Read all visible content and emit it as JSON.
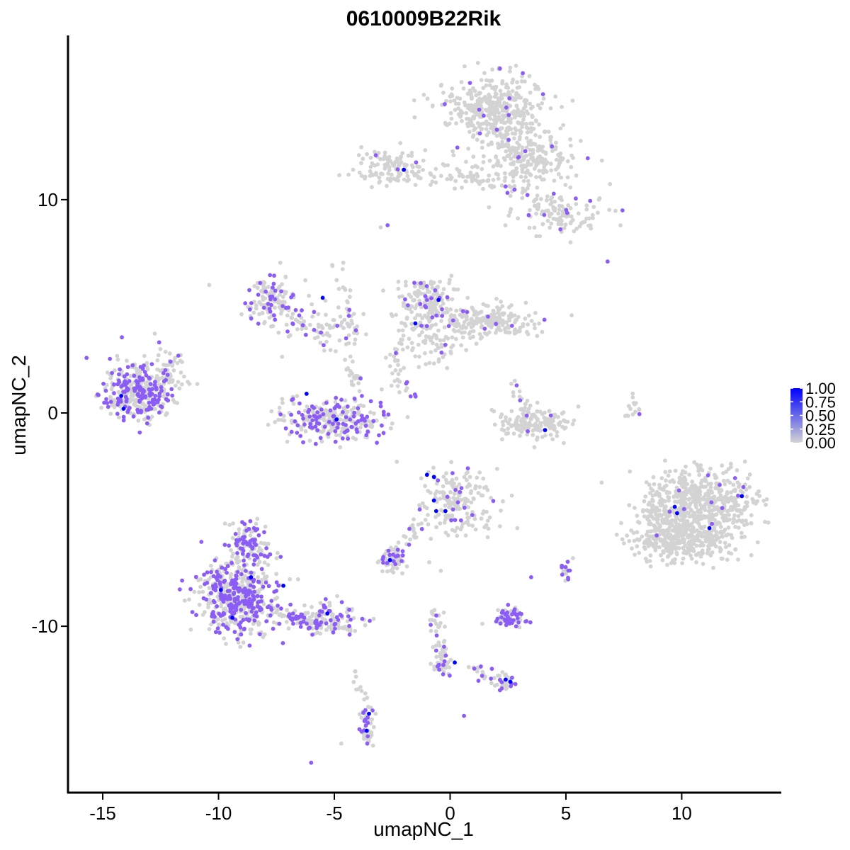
{
  "chart_data": {
    "type": "scatter",
    "title": "0610009B22Rik",
    "xlabel": "umapNC_1",
    "ylabel": "umapNC_2",
    "xlim": [
      -16.5,
      14.3
    ],
    "ylim": [
      -17.8,
      17.7
    ],
    "x_ticks": [
      -15,
      -10,
      -5,
      0,
      5,
      10
    ],
    "y_ticks": [
      -10,
      0,
      10
    ],
    "x_tick_labels": [
      "-15",
      "-10",
      "-5",
      "0",
      "5",
      "10"
    ],
    "y_tick_labels": [
      "-10",
      "0",
      "10"
    ],
    "grid": false,
    "legend_position": "right",
    "color_scale": {
      "low": "#d3d3d3",
      "high": "#0000ff",
      "range": [
        0,
        1
      ],
      "breaks": [
        1.0,
        0.75,
        0.5,
        0.25,
        0.0
      ],
      "break_labels": [
        "1.00",
        "0.75",
        "0.50",
        "0.25",
        "0.00"
      ]
    },
    "colors": {
      "background_cell": "#d3d3d3",
      "mid_expression": "#8b5cf6",
      "high_expression": "#0000ff"
    },
    "clusters": [
      {
        "cx": 1.8,
        "cy": 14.2,
        "sx": 1.1,
        "sy": 0.8,
        "n": 420,
        "frac_expr": 0.02
      },
      {
        "cx": 3.6,
        "cy": 12.0,
        "sx": 1.0,
        "sy": 0.7,
        "n": 180,
        "frac_expr": 0.02
      },
      {
        "cx": -2.5,
        "cy": 11.5,
        "sx": 0.9,
        "sy": 0.45,
        "n": 120,
        "frac_expr": 0.04
      },
      {
        "cx": 0.8,
        "cy": 11.1,
        "sx": 1.2,
        "sy": 0.35,
        "n": 60,
        "frac_expr": 0.0
      },
      {
        "cx": 4.8,
        "cy": 9.3,
        "sx": 0.9,
        "sy": 0.4,
        "n": 110,
        "frac_expr": 0.06
      },
      {
        "cx": -7.7,
        "cy": 5.3,
        "sx": 0.55,
        "sy": 0.6,
        "n": 120,
        "frac_expr": 0.25
      },
      {
        "cx": -5.4,
        "cy": 4.0,
        "sx": 0.9,
        "sy": 0.5,
        "n": 70,
        "frac_expr": 0.15
      },
      {
        "cx": -1.0,
        "cy": 5.3,
        "sx": 0.55,
        "sy": 0.6,
        "n": 150,
        "frac_expr": 0.12
      },
      {
        "cx": 1.5,
        "cy": 4.3,
        "sx": 1.1,
        "sy": 0.4,
        "n": 220,
        "frac_expr": 0.05
      },
      {
        "cx": -0.9,
        "cy": 3.4,
        "sx": 0.8,
        "sy": 0.6,
        "n": 90,
        "frac_expr": 0.06
      },
      {
        "cx": -13.4,
        "cy": 1.1,
        "sx": 0.75,
        "sy": 0.7,
        "n": 380,
        "frac_expr": 0.35
      },
      {
        "cx": -12.1,
        "cy": 1.9,
        "sx": 0.35,
        "sy": 0.5,
        "n": 40,
        "frac_expr": 0.05
      },
      {
        "cx": -5.0,
        "cy": -0.3,
        "sx": 1.2,
        "sy": 0.45,
        "n": 300,
        "frac_expr": 0.35
      },
      {
        "cx": 3.6,
        "cy": -0.5,
        "sx": 0.9,
        "sy": 0.35,
        "n": 160,
        "frac_expr": 0.02
      },
      {
        "cx": 10.8,
        "cy": -4.2,
        "sx": 1.2,
        "sy": 0.8,
        "n": 520,
        "frac_expr": 0.02
      },
      {
        "cx": 10.2,
        "cy": -6.0,
        "sx": 1.1,
        "sy": 0.5,
        "n": 300,
        "frac_expr": 0.01
      },
      {
        "cx": 9.0,
        "cy": -5.2,
        "sx": 0.5,
        "sy": 0.7,
        "n": 90,
        "frac_expr": 0.02
      },
      {
        "cx": 0.2,
        "cy": -4.2,
        "sx": 0.9,
        "sy": 0.8,
        "n": 180,
        "frac_expr": 0.08
      },
      {
        "cx": -9.2,
        "cy": -8.6,
        "sx": 0.9,
        "sy": 0.9,
        "n": 520,
        "frac_expr": 0.45
      },
      {
        "cx": -8.7,
        "cy": -6.2,
        "sx": 0.5,
        "sy": 0.55,
        "n": 120,
        "frac_expr": 0.45
      },
      {
        "cx": -5.5,
        "cy": -9.6,
        "sx": 0.9,
        "sy": 0.35,
        "n": 120,
        "frac_expr": 0.35
      },
      {
        "cx": -2.5,
        "cy": -6.9,
        "sx": 0.28,
        "sy": 0.25,
        "n": 45,
        "frac_expr": 0.3
      },
      {
        "cx": 2.5,
        "cy": -9.6,
        "sx": 0.38,
        "sy": 0.25,
        "n": 70,
        "frac_expr": 0.55
      },
      {
        "cx": -3.6,
        "cy": -14.6,
        "sx": 0.15,
        "sy": 0.5,
        "n": 45,
        "frac_expr": 0.4
      },
      {
        "cx": -0.3,
        "cy": -11.8,
        "sx": 0.2,
        "sy": 0.35,
        "n": 30,
        "frac_expr": 0.35
      },
      {
        "cx": 2.3,
        "cy": -12.6,
        "sx": 0.25,
        "sy": 0.25,
        "n": 25,
        "frac_expr": 0.35
      },
      {
        "cx": 5.0,
        "cy": -7.3,
        "sx": 0.12,
        "sy": 0.3,
        "n": 15,
        "frac_expr": 0.55
      },
      {
        "cx": 7.9,
        "cy": 0.3,
        "sx": 0.15,
        "sy": 0.35,
        "n": 15,
        "frac_expr": 0.05
      }
    ],
    "strands": [
      {
        "from": [
          -9.6,
          -8.8
        ],
        "to": [
          -4.2,
          -10.2
        ],
        "n": 70,
        "frac_expr": 0.35
      },
      {
        "from": [
          -1.2,
          -5.2
        ],
        "to": [
          -2.8,
          -7.0
        ],
        "n": 40,
        "frac_expr": 0.2
      },
      {
        "from": [
          -0.8,
          -9.2
        ],
        "to": [
          -0.2,
          -12.0
        ],
        "n": 40,
        "frac_expr": 0.2
      },
      {
        "from": [
          0.9,
          -12.0
        ],
        "to": [
          2.6,
          -12.8
        ],
        "n": 25,
        "frac_expr": 0.3
      },
      {
        "from": [
          -5.0,
          7.5
        ],
        "to": [
          -4.0,
          3.3
        ],
        "n": 30,
        "frac_expr": 0.1
      },
      {
        "from": [
          -4.4,
          2.5
        ],
        "to": [
          -4.0,
          1.4
        ],
        "n": 20,
        "frac_expr": 0.05
      },
      {
        "from": [
          -2.5,
          1.6
        ],
        "to": [
          -1.4,
          0.8
        ],
        "n": 15,
        "frac_expr": 0.3
      },
      {
        "from": [
          -2.5,
          3.0
        ],
        "to": [
          -2.3,
          1.8
        ],
        "n": 15,
        "frac_expr": 0.0
      },
      {
        "from": [
          2.6,
          1.3
        ],
        "to": [
          3.7,
          -0.2
        ],
        "n": 20,
        "frac_expr": 0.1
      },
      {
        "from": [
          0.8,
          11.1
        ],
        "to": [
          4.4,
          9.8
        ],
        "n": 30,
        "frac_expr": 0.05
      },
      {
        "from": [
          2.2,
          13.0
        ],
        "to": [
          3.3,
          11.6
        ],
        "n": 30,
        "frac_expr": 0.02
      },
      {
        "from": [
          -4.2,
          -11.5
        ],
        "to": [
          -3.6,
          -14.0
        ],
        "n": 12,
        "frac_expr": 0.1
      },
      {
        "from": [
          -6.1,
          3.9
        ],
        "to": [
          -7.8,
          5.6
        ],
        "n": 25,
        "frac_expr": 0.15
      }
    ],
    "singletons": [
      [
        -10.4,
        6.0,
        0.0
      ],
      [
        -6.0,
        -16.4,
        0.6
      ],
      [
        -4.7,
        -15.5,
        0.0
      ],
      [
        0.6,
        -14.2,
        0.6
      ],
      [
        6.8,
        7.1,
        0.6
      ],
      [
        -2.7,
        8.8,
        0.3
      ],
      [
        -3.0,
        8.7,
        0.0
      ],
      [
        5.2,
        8.0,
        0.0
      ],
      [
        -0.9,
        -7.0,
        0.0
      ],
      [
        -0.4,
        -7.4,
        0.0
      ],
      [
        2.9,
        -5.4,
        0.0
      ],
      [
        3.5,
        -7.7,
        0.5
      ],
      [
        5.1,
        -7.8,
        0.5
      ]
    ],
    "high_points": [
      [
        -2.0,
        11.4
      ],
      [
        -5.5,
        5.4
      ],
      [
        -0.5,
        5.3
      ],
      [
        -1.5,
        4.2
      ],
      [
        -14.2,
        0.8
      ],
      [
        -14.1,
        0.2
      ],
      [
        -6.2,
        0.9
      ],
      [
        -4.9,
        -0.3
      ],
      [
        4.1,
        -0.8
      ],
      [
        -2.6,
        -6.9
      ],
      [
        -1.0,
        -2.9
      ],
      [
        -0.7,
        -3.0
      ],
      [
        -0.6,
        -4.6
      ],
      [
        -0.2,
        -4.6
      ],
      [
        -0.7,
        -4.1
      ],
      [
        9.7,
        -4.4
      ],
      [
        9.8,
        -4.7
      ],
      [
        11.2,
        -5.4
      ],
      [
        12.6,
        -3.9
      ],
      [
        -8.6,
        -7.7
      ],
      [
        -9.9,
        -8.3
      ],
      [
        -9.4,
        -9.6
      ],
      [
        -7.2,
        -8.1
      ],
      [
        -5.3,
        -9.4
      ],
      [
        -3.6,
        -14.9
      ],
      [
        -3.5,
        -14.1
      ],
      [
        0.2,
        -11.7
      ],
      [
        2.4,
        -12.5
      ],
      [
        2.6,
        -12.6
      ]
    ],
    "seed": 20240517
  }
}
